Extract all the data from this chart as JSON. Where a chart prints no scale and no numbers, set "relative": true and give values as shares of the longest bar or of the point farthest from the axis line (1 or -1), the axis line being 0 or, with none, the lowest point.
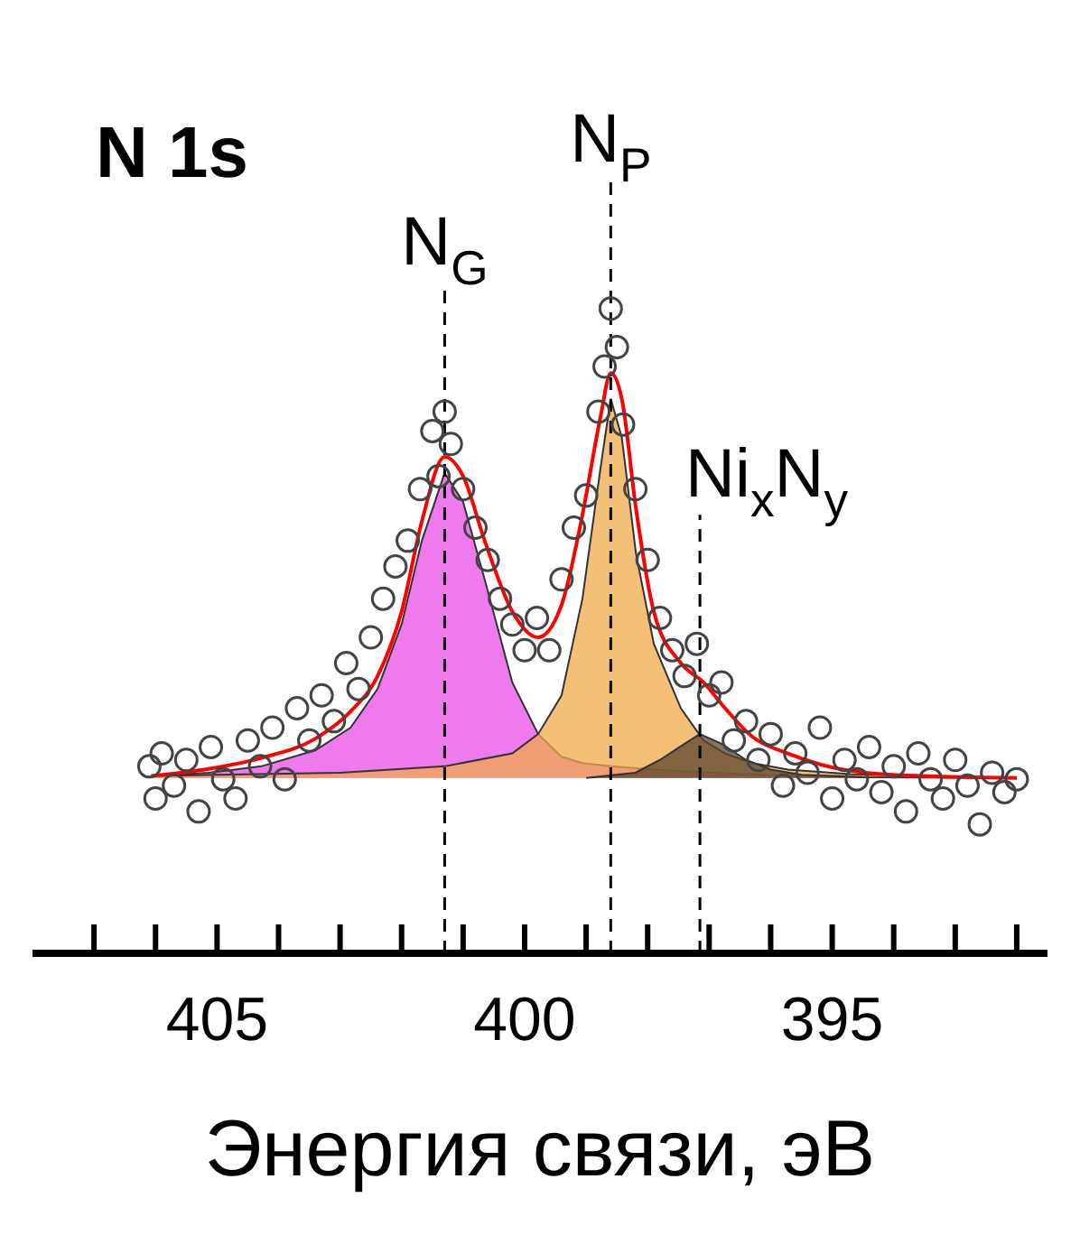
{
  "chart_data": {
    "type": "scatter",
    "title": "N 1s",
    "xlabel": "Энергия связи, эВ",
    "relative": true,
    "tick_labels": "x",
    "grid": false,
    "xlim": [
      408,
      391.5
    ],
    "xticks": [
      {
        "value": 407,
        "label": null
      },
      {
        "value": 406,
        "label": null
      },
      405,
      {
        "value": 404,
        "label": null
      },
      {
        "value": 403,
        "label": null
      },
      {
        "value": 402,
        "label": null
      },
      {
        "value": 401,
        "label": null
      },
      400,
      {
        "value": 399,
        "label": null
      },
      {
        "value": 398,
        "label": null
      },
      {
        "value": 397,
        "label": null
      },
      {
        "value": 396,
        "label": null
      },
      395,
      {
        "value": 394,
        "label": null
      },
      {
        "value": 393,
        "label": null
      },
      {
        "value": 392,
        "label": null
      }
    ],
    "ref_lines": [
      {
        "axis": "x",
        "value": 401.3,
        "label": "N$_{G}$",
        "color": "#000000",
        "line_style": "dashed"
      },
      {
        "axis": "x",
        "value": 398.6,
        "label": "N$_{P}$",
        "color": "#000000",
        "line_style": "dashed"
      },
      {
        "axis": "x",
        "value": 397.15,
        "label": "Ni$_{x}$N$_{y}$",
        "color": "#000000",
        "line_style": "dashed"
      }
    ],
    "series": [
      {
        "type": "area",
        "color": "#e84de8",
        "x": [
          406.07,
          405.14,
          404.28,
          403.4,
          402.83,
          402.39,
          402.0,
          401.67,
          401.3,
          401.0,
          400.65,
          400.2,
          399.78,
          399.4,
          399.06,
          398.6,
          397.9,
          397.0,
          396.0,
          394.7,
          392.0
        ],
        "values": [
          0.275,
          0.28,
          0.29,
          0.315,
          0.35,
          0.41,
          0.51,
          0.64,
          0.745,
          0.7,
          0.58,
          0.42,
          0.34,
          0.305,
          0.295,
          0.29,
          0.285,
          0.28,
          0.277,
          0.275,
          0.272
        ]
      },
      {
        "type": "area",
        "color": "#f0a94a",
        "x": [
          406.07,
          403.0,
          401.3,
          400.2,
          399.78,
          399.4,
          399.06,
          398.77,
          398.6,
          398.42,
          398.19,
          397.9,
          397.46,
          397.09,
          396.74,
          396.3,
          395.72,
          394.7,
          392.0
        ],
        "values": [
          0.275,
          0.28,
          0.29,
          0.31,
          0.34,
          0.4,
          0.55,
          0.75,
          0.86,
          0.8,
          0.62,
          0.48,
          0.38,
          0.33,
          0.31,
          0.295,
          0.285,
          0.278,
          0.272
        ]
      },
      {
        "type": "area",
        "color": "#5a4630",
        "x": [
          399.0,
          398.2,
          397.8,
          397.4,
          397.15,
          396.8,
          396.4,
          396.0,
          395.5,
          394.5,
          392.0
        ],
        "values": [
          0.272,
          0.28,
          0.3,
          0.325,
          0.34,
          0.325,
          0.3,
          0.285,
          0.277,
          0.273,
          0.272
        ]
      },
      {
        "marker": "circle",
        "color": "#444444",
        "x": [
          406.1,
          406.0,
          405.9,
          405.7,
          405.5,
          405.3,
          405.1,
          404.9,
          404.7,
          404.5,
          404.3,
          404.1,
          403.9,
          403.7,
          403.5,
          403.3,
          403.1,
          402.9,
          402.7,
          402.5,
          402.3,
          402.1,
          401.9,
          401.7,
          401.5,
          401.4,
          401.3,
          401.2,
          401.0,
          400.8,
          400.6,
          400.4,
          400.2,
          400.0,
          399.8,
          399.6,
          399.4,
          399.2,
          399.0,
          398.8,
          398.7,
          398.6,
          398.5,
          398.4,
          398.2,
          398.0,
          397.8,
          397.6,
          397.4,
          397.2,
          397.0,
          396.8,
          396.6,
          396.4,
          396.2,
          396.0,
          395.8,
          395.6,
          395.4,
          395.2,
          395.0,
          394.8,
          394.6,
          394.4,
          394.2,
          394.0,
          393.8,
          393.6,
          393.4,
          393.2,
          393.0,
          392.8,
          392.6,
          392.4,
          392.2,
          392.0
        ],
        "values": [
          0.29,
          0.24,
          0.31,
          0.26,
          0.3,
          0.22,
          0.32,
          0.27,
          0.24,
          0.33,
          0.29,
          0.35,
          0.27,
          0.38,
          0.33,
          0.4,
          0.36,
          0.45,
          0.41,
          0.49,
          0.55,
          0.6,
          0.64,
          0.72,
          0.81,
          0.74,
          0.84,
          0.79,
          0.72,
          0.66,
          0.61,
          0.55,
          0.51,
          0.47,
          0.52,
          0.47,
          0.58,
          0.66,
          0.71,
          0.84,
          0.91,
          1.0,
          0.94,
          0.82,
          0.72,
          0.61,
          0.52,
          0.47,
          0.43,
          0.48,
          0.4,
          0.42,
          0.33,
          0.36,
          0.3,
          0.34,
          0.26,
          0.31,
          0.28,
          0.35,
          0.24,
          0.3,
          0.27,
          0.32,
          0.25,
          0.29,
          0.22,
          0.31,
          0.27,
          0.24,
          0.3,
          0.26,
          0.2,
          0.28,
          0.25,
          0.27
        ]
      },
      {
        "type": "line",
        "color": "#ff0000",
        "x": [
          406.07,
          405.14,
          404.28,
          403.4,
          402.83,
          402.39,
          402.0,
          401.67,
          401.3,
          401.0,
          400.65,
          400.2,
          399.78,
          399.4,
          399.06,
          398.77,
          398.6,
          398.42,
          398.19,
          397.9,
          397.46,
          397.09,
          396.74,
          396.3,
          395.72,
          394.7,
          393.55,
          392.0
        ],
        "values": [
          0.275,
          0.286,
          0.303,
          0.333,
          0.375,
          0.43,
          0.53,
          0.67,
          0.77,
          0.74,
          0.64,
          0.53,
          0.49,
          0.54,
          0.68,
          0.83,
          0.9,
          0.86,
          0.69,
          0.53,
          0.45,
          0.42,
          0.38,
          0.336,
          0.31,
          0.283,
          0.275,
          0.272
        ]
      }
    ]
  }
}
